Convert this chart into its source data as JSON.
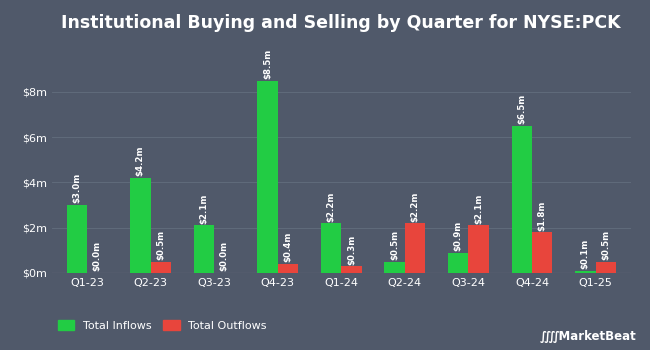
{
  "title": "Institutional Buying and Selling by Quarter for NYSE:PCK",
  "quarters": [
    "Q1-23",
    "Q2-23",
    "Q3-23",
    "Q4-23",
    "Q1-24",
    "Q2-24",
    "Q3-24",
    "Q4-24",
    "Q1-25"
  ],
  "inflows": [
    3.0,
    4.2,
    2.1,
    8.5,
    2.2,
    0.5,
    0.9,
    6.5,
    0.1
  ],
  "outflows": [
    0.0,
    0.5,
    0.0,
    0.4,
    0.3,
    2.2,
    2.1,
    1.8,
    0.5
  ],
  "inflow_labels": [
    "$3.0m",
    "$4.2m",
    "$2.1m",
    "$8.5m",
    "$2.2m",
    "$0.5m",
    "$0.9m",
    "$6.5m",
    "$0.1m"
  ],
  "outflow_labels": [
    "$0.0m",
    "$0.5m",
    "$0.0m",
    "$0.4m",
    "$0.3m",
    "$2.2m",
    "$2.1m",
    "$1.8m",
    "$0.5m"
  ],
  "inflow_color": "#22cc44",
  "outflow_color": "#e8453c",
  "background_color": "#50596a",
  "grid_color": "#636e7e",
  "text_color": "#ffffff",
  "bar_width": 0.32,
  "ylim": [
    0,
    10.2
  ],
  "yticks": [
    0,
    2,
    4,
    6,
    8
  ],
  "ytick_labels": [
    "$0m",
    "$2m",
    "$4m",
    "$6m",
    "$8m"
  ],
  "legend_inflow": "Total Inflows",
  "legend_outflow": "Total Outflows",
  "title_fontsize": 12.5,
  "label_fontsize": 6.2,
  "tick_fontsize": 8,
  "legend_fontsize": 8
}
